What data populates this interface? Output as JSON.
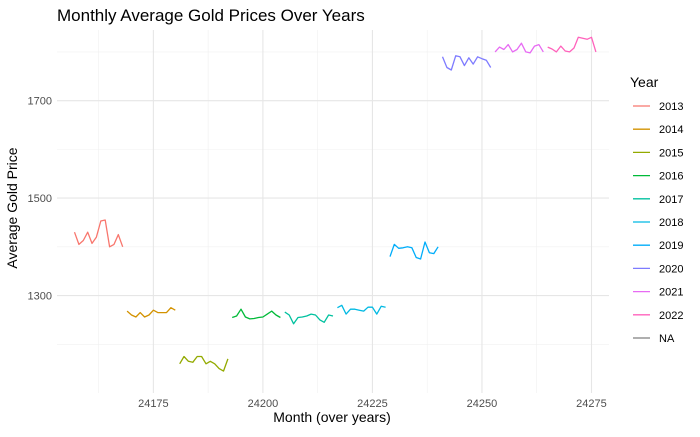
{
  "chart_data": {
    "type": "line",
    "title": "Monthly Average Gold Prices Over Years",
    "xlabel": "Month (over years)",
    "ylabel": "Average Gold Price",
    "xlim": [
      24153,
      24279
    ],
    "ylim": [
      1100,
      1845
    ],
    "x_ticks": [
      24175,
      24200,
      24225,
      24250,
      24275
    ],
    "y_ticks": [
      1300,
      1500,
      1700
    ],
    "x_tick_labels": [
      "24175",
      "24200",
      "24225",
      "24250",
      "24275"
    ],
    "y_tick_labels": [
      "1300",
      "1500",
      "1700"
    ],
    "grid": true,
    "legend_title": "Year",
    "legend_position": "right",
    "series": [
      {
        "name": "2013",
        "color": "#F8766D",
        "x": [
          24157,
          24158,
          24159,
          24160,
          24161,
          24162,
          24163,
          24164,
          24165,
          24166,
          24167,
          24168
        ],
        "y": [
          1430,
          1405,
          1413,
          1430,
          1407,
          1420,
          1453,
          1455,
          1400,
          1405,
          1425,
          1400
        ]
      },
      {
        "name": "2014",
        "color": "#D39200",
        "x": [
          24169,
          24170,
          24171,
          24172,
          24173,
          24174,
          24175,
          24176,
          24177,
          24178,
          24179,
          24180
        ],
        "y": [
          1268,
          1260,
          1256,
          1265,
          1256,
          1260,
          1270,
          1265,
          1265,
          1265,
          1275,
          1270
        ]
      },
      {
        "name": "2015",
        "color": "#93AA00",
        "x": [
          24181,
          24182,
          24183,
          24184,
          24185,
          24186,
          24187,
          24188,
          24189,
          24190,
          24191,
          24192
        ],
        "y": [
          1160,
          1175,
          1165,
          1163,
          1175,
          1175,
          1160,
          1165,
          1160,
          1150,
          1145,
          1170
        ]
      },
      {
        "name": "2016",
        "color": "#00BA38",
        "x": [
          24193,
          24194,
          24195,
          24196,
          24197,
          24198,
          24199,
          24200,
          24201,
          24202,
          24203,
          24204
        ],
        "y": [
          1255,
          1258,
          1272,
          1256,
          1252,
          1253,
          1255,
          1256,
          1262,
          1268,
          1260,
          1255
        ]
      },
      {
        "name": "2017",
        "color": "#00C19F",
        "x": [
          24205,
          24206,
          24207,
          24208,
          24209,
          24210,
          24211,
          24212,
          24213,
          24214,
          24215,
          24216
        ],
        "y": [
          1266,
          1260,
          1242,
          1255,
          1256,
          1258,
          1262,
          1260,
          1250,
          1245,
          1260,
          1258
        ]
      },
      {
        "name": "2018",
        "color": "#00B9E3",
        "x": [
          24217,
          24218,
          24219,
          24220,
          24221,
          24222,
          24223,
          24224,
          24225,
          24226,
          24227,
          24228
        ],
        "y": [
          1275,
          1280,
          1262,
          1272,
          1272,
          1270,
          1268,
          1276,
          1276,
          1262,
          1278,
          1276
        ]
      },
      {
        "name": "2019",
        "color": "#00ADFA",
        "x": [
          24229,
          24230,
          24231,
          24232,
          24233,
          24234,
          24235,
          24236,
          24237,
          24238,
          24239,
          24240
        ],
        "y": [
          1380,
          1405,
          1397,
          1398,
          1400,
          1398,
          1378,
          1375,
          1410,
          1388,
          1386,
          1400
        ]
      },
      {
        "name": "2020",
        "color": "#7E7BFF",
        "x": [
          24241,
          24242,
          24243,
          24244,
          24245,
          24246,
          24247,
          24248,
          24249,
          24250,
          24251,
          24252
        ],
        "y": [
          1790,
          1768,
          1763,
          1792,
          1790,
          1772,
          1788,
          1775,
          1790,
          1786,
          1783,
          1768
        ]
      },
      {
        "name": "2021",
        "color": "#E76BF3",
        "x": [
          24253,
          24254,
          24255,
          24256,
          24257,
          24258,
          24259,
          24260,
          24261,
          24262,
          24263,
          24264
        ],
        "y": [
          1800,
          1810,
          1805,
          1815,
          1800,
          1805,
          1818,
          1800,
          1798,
          1812,
          1815,
          1800
        ]
      },
      {
        "name": "2022",
        "color": "#FF62BC",
        "x": [
          24265,
          24266,
          24267,
          24268,
          24269,
          24270,
          24271,
          24272,
          24273,
          24274,
          24275,
          24276
        ],
        "y": [
          1810,
          1806,
          1800,
          1812,
          1802,
          1800,
          1808,
          1830,
          1828,
          1826,
          1830,
          1800
        ]
      },
      {
        "name": "NA",
        "color": "#7F7F7F",
        "x": [],
        "y": []
      }
    ]
  }
}
